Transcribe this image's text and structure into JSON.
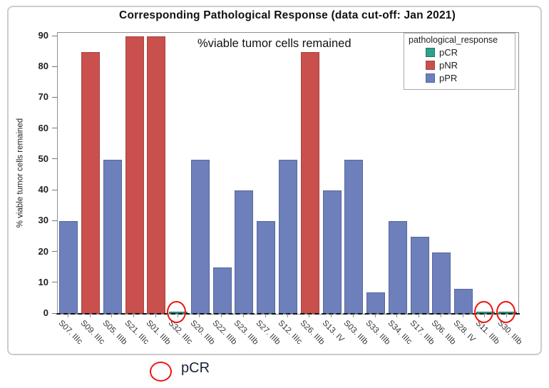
{
  "title": "Corresponding Pathological Response (data cut-off: Jan 2021)",
  "plot_annotation": "%viable tumor cells remained",
  "legend": {
    "title": "pathological_response",
    "entries": [
      {
        "label": "pCR",
        "color": "#2fa08c",
        "border": "#1f7a6a"
      },
      {
        "label": "pNR",
        "color": "#c9504d",
        "border": "#a64442"
      },
      {
        "label": "pPR",
        "color": "#6e80bb",
        "border": "#55659e"
      }
    ]
  },
  "footer": {
    "label": "pCR",
    "circle_color": "#ee1511"
  },
  "chart_data": {
    "type": "bar",
    "title": "Corresponding Pathological Response (data cut-off: Jan 2021)",
    "xlabel": "",
    "ylabel": "% viable tumor cells remained",
    "ylim": [
      0,
      90
    ],
    "yticks": [
      0,
      10,
      20,
      30,
      40,
      50,
      60,
      70,
      80,
      90
    ],
    "grid": false,
    "legend_position": "top-right",
    "categories": [
      "S07. IIIc",
      "S09. IIIc",
      "S05. IIIb",
      "S21. IIIc",
      "S01. IIIb",
      "S32. IIIc",
      "S20. IIIb",
      "S22. IIIb",
      "S23. IIIb",
      "S27. IIIb",
      "S12. IIIc",
      "S26. IIIb",
      "S13. IV",
      "S03. IIIb",
      "S33. IIIb",
      "S34. IIIc",
      "S17. IIIb",
      "S06. IIIb",
      "S28. IV",
      "S11. IIIb",
      "S30. IIIb"
    ],
    "values": [
      30,
      85,
      50,
      90,
      90,
      0,
      50,
      15,
      40,
      30,
      50,
      85,
      40,
      50,
      7,
      30,
      25,
      20,
      8,
      0,
      0
    ],
    "pathological_response": [
      "pPR",
      "pNR",
      "pPR",
      "pNR",
      "pNR",
      "pCR",
      "pPR",
      "pPR",
      "pPR",
      "pPR",
      "pPR",
      "pNR",
      "pPR",
      "pPR",
      "pPR",
      "pPR",
      "pPR",
      "pPR",
      "pPR",
      "pCR",
      "pCR"
    ],
    "series_colors": {
      "pCR": "#2fa08c",
      "pNR": "#c9504d",
      "pPR": "#6e80bb"
    },
    "series_border_colors": {
      "pCR": "#1f7a6a",
      "pNR": "#a64442",
      "pPR": "#55659e"
    },
    "circled_pcr_categories": [
      "S32. IIIc",
      "S11. IIIb",
      "S30. IIIb"
    ],
    "baseline_style": "black-dashed"
  }
}
